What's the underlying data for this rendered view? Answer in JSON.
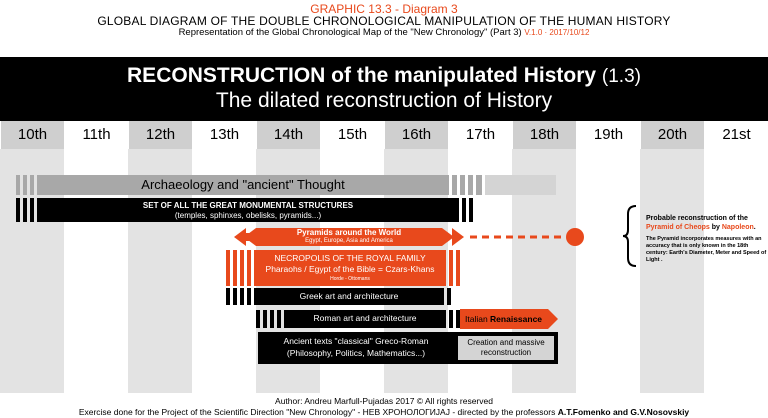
{
  "header": {
    "graphic": "GRAPHIC 13.3 - Diagram 3",
    "title": "GLOBAL DIAGRAM OF THE DOUBLE CHRONOLOGICAL MANIPULATION OF THE HUMAN HISTORY",
    "subtitle": "Representation of the Global Chronological Map of the \"New Chronology\" (Part 3)",
    "version": "V.1.0  ·  2017/10/12"
  },
  "banner": {
    "title": "RECONSTRUCTION of the manipulated History",
    "title_number": "(1.3)",
    "subtitle": "The dilated reconstruction of History"
  },
  "centuries": [
    "10th",
    "11th",
    "12th",
    "13th",
    "14th",
    "15th",
    "16th",
    "17th",
    "18th",
    "19th",
    "20th",
    "21st"
  ],
  "bars": {
    "archaeology": "Archaeology and \"ancient\" Thought",
    "monuments_title": "SET OF ALL THE GREAT MONUMENTAL STRUCTURES",
    "monuments_sub": "(temples, sphinxes, obelisks, pyramids...)",
    "pyramids_title": "Pyramids around the World",
    "pyramids_sub": "Egypt, Europe, Asia and America",
    "necropolis_title": "NECROPOLIS OF THE ROYAL FAMILY",
    "necropolis_sub": "Pharaohs / Egypt of the Bible = Czars-Khans",
    "necropolis_small": "Horde - Ottomans",
    "greek": "Greek art and architecture",
    "roman": "Roman art and architecture",
    "renaissance_a": "Italian ",
    "renaissance_b": "Renaissance",
    "ancient_texts_1": "Ancient texts \"classical\" Greco-Roman",
    "ancient_texts_2": "(Philosophy, Politics, Mathematics...)",
    "creation_1": "Creation and massive",
    "creation_2": "reconstruction"
  },
  "note": {
    "title_a": "Probable reconstruction of the ",
    "title_b": "Pyramid of Cheops",
    "title_c": " by ",
    "title_d": "Napoleon",
    "title_e": ".",
    "body": "The Pyramid incorporates measures with an accuracy that is only known in the 18th century: Earth's Diameter, Meter and Speed of Light ."
  },
  "footer": {
    "author": "Author: Andreu Marfull-Pujadas 2017 © All rights reserved",
    "exercise_a": "Exercise done for the Project of the Scientific Direction \"New Chronology\" - НЕВ ХРОНОЛОГИЈАЈ - directed by the professors ",
    "exercise_b": "A.T.Fomenko and G.V.Nosovskiy"
  },
  "colors": {
    "accent": "#e8491c",
    "dark": "#000000",
    "gray": "#a8a8a8",
    "column": "#e3e3e3",
    "header_cell": "#cfcfcf"
  }
}
